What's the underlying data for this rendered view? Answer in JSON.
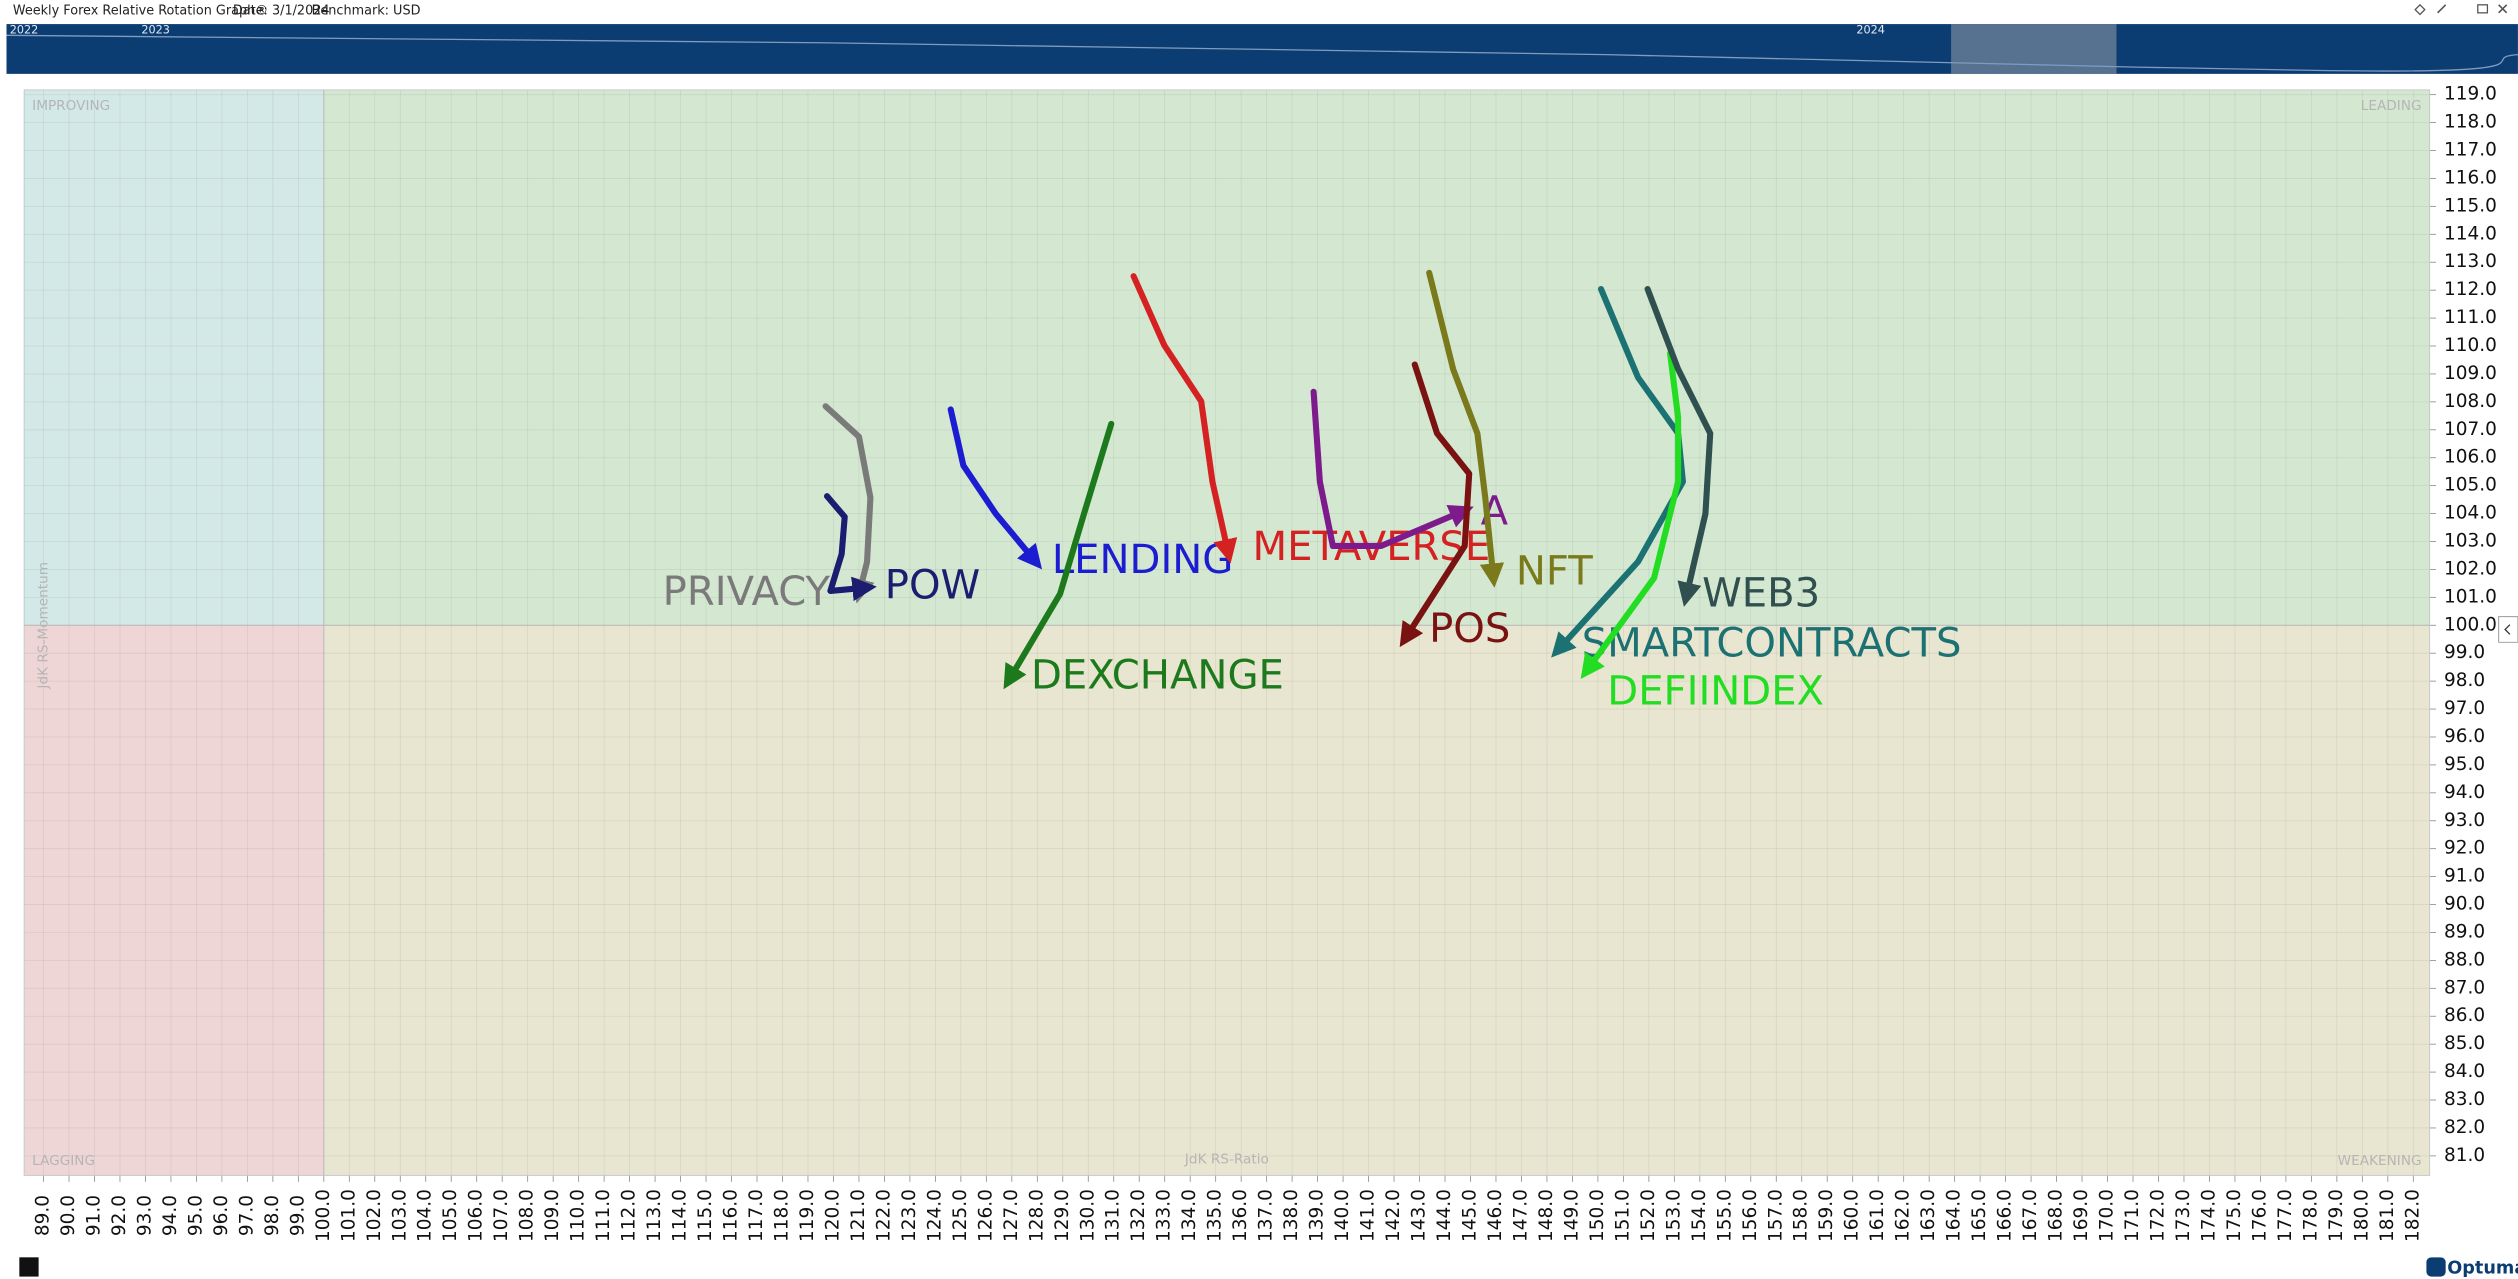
{
  "header": {
    "title": "Weekly Forex Relative Rotation Graph®",
    "date": "Date: 3/1/2024",
    "benchmark": "Benchmark: USD"
  },
  "timeline": {
    "labels": [
      "2022",
      "2023",
      "2024"
    ]
  },
  "footer": {
    "logo": "Optuma"
  },
  "chart_data": {
    "type": "rrg",
    "x_label": "JdK RS-Ratio",
    "y_label": "JdK RS-Momentum",
    "quadrants": {
      "improving": "IMPROVING",
      "leading": "LEADING",
      "lagging": "LAGGING",
      "weakening": "WEAKENING"
    },
    "quadrant_colors": {
      "improving": "#d3e9e7",
      "leading": "#d4e8d1",
      "lagging": "#efd6d6",
      "weakening": "#e8e6d0"
    },
    "center": [
      100,
      100
    ],
    "grid": true,
    "xlim": [
      88.24,
      182.64
    ],
    "ylim": [
      80.3,
      119.17
    ],
    "xticks": [
      {
        "value": 89,
        "label": "89.0"
      },
      {
        "value": 90,
        "label": "90.0"
      },
      {
        "value": 91,
        "label": "91.0"
      },
      {
        "value": 92,
        "label": "92.0"
      },
      {
        "value": 93,
        "label": "93.0"
      },
      {
        "value": 94,
        "label": "94.0"
      },
      {
        "value": 95,
        "label": "95.0"
      },
      {
        "value": 96,
        "label": "96.0"
      },
      {
        "value": 97,
        "label": "97.0"
      },
      {
        "value": 98,
        "label": "98.0"
      },
      {
        "value": 99,
        "label": "99.0"
      },
      {
        "value": 100,
        "label": "100.0"
      },
      {
        "value": 101,
        "label": "101.0"
      },
      {
        "value": 102,
        "label": "102.0"
      },
      {
        "value": 103,
        "label": "103.0"
      },
      {
        "value": 104,
        "label": "104.0"
      },
      {
        "value": 105,
        "label": "105.0"
      },
      {
        "value": 106,
        "label": "106.0"
      },
      {
        "value": 107,
        "label": "107.0"
      },
      {
        "value": 108,
        "label": "108.0"
      },
      {
        "value": 109,
        "label": "109.0"
      },
      {
        "value": 110,
        "label": "110.0"
      },
      {
        "value": 111,
        "label": "111.0"
      },
      {
        "value": 112,
        "label": "112.0"
      },
      {
        "value": 113,
        "label": "113.0"
      },
      {
        "value": 114,
        "label": "114.0"
      },
      {
        "value": 115,
        "label": "115.0"
      },
      {
        "value": 116,
        "label": "116.0"
      },
      {
        "value": 117,
        "label": "117.0"
      },
      {
        "value": 118,
        "label": "118.0"
      },
      {
        "value": 119,
        "label": "119.0"
      },
      {
        "value": 120,
        "label": "120.0"
      },
      {
        "value": 121,
        "label": "121.0"
      },
      {
        "value": 122,
        "label": "122.0"
      },
      {
        "value": 123,
        "label": "123.0"
      },
      {
        "value": 124,
        "label": "124.0"
      },
      {
        "value": 125,
        "label": "125.0"
      },
      {
        "value": 126,
        "label": "126.0"
      },
      {
        "value": 127,
        "label": "127.0"
      },
      {
        "value": 128,
        "label": "128.0"
      },
      {
        "value": 129,
        "label": "129.0"
      },
      {
        "value": 130,
        "label": "130.0"
      },
      {
        "value": 131,
        "label": "131.0"
      },
      {
        "value": 132,
        "label": "132.0"
      },
      {
        "value": 133,
        "label": "133.0"
      },
      {
        "value": 134,
        "label": "134.0"
      },
      {
        "value": 135,
        "label": "135.0"
      },
      {
        "value": 136,
        "label": "136.0"
      },
      {
        "value": 137,
        "label": "137.0"
      },
      {
        "value": 138,
        "label": "138.0"
      },
      {
        "value": 139,
        "label": "139.0"
      },
      {
        "value": 140,
        "label": "140.0"
      },
      {
        "value": 141,
        "label": "141.0"
      },
      {
        "value": 142,
        "label": "142.0"
      },
      {
        "value": 143,
        "label": "143.0"
      },
      {
        "value": 144,
        "label": "144.0"
      },
      {
        "value": 145,
        "label": "145.0"
      },
      {
        "value": 146,
        "label": "146.0"
      },
      {
        "value": 147,
        "label": "147.0"
      },
      {
        "value": 148,
        "label": "148.0"
      },
      {
        "value": 149,
        "label": "149.0"
      },
      {
        "value": 150,
        "label": "150.0"
      },
      {
        "value": 151,
        "label": "151.0"
      },
      {
        "value": 152,
        "label": "152.0"
      },
      {
        "value": 153,
        "label": "153.0"
      },
      {
        "value": 154,
        "label": "154.0"
      },
      {
        "value": 155,
        "label": "155.0"
      },
      {
        "value": 156,
        "label": "156.0"
      },
      {
        "value": 157,
        "label": "157.0"
      },
      {
        "value": 158,
        "label": "158.0"
      },
      {
        "value": 159,
        "label": "159.0"
      },
      {
        "value": 160,
        "label": "160.0"
      },
      {
        "value": 161,
        "label": "161.0"
      },
      {
        "value": 162,
        "label": "162.0"
      },
      {
        "value": 163,
        "label": "163.0"
      },
      {
        "value": 164,
        "label": "164.0"
      },
      {
        "value": 165,
        "label": "165.0"
      },
      {
        "value": 166,
        "label": "166.0"
      },
      {
        "value": 167,
        "label": "167.0"
      },
      {
        "value": 168,
        "label": "168.0"
      },
      {
        "value": 169,
        "label": "169.0"
      },
      {
        "value": 170,
        "label": "170.0"
      },
      {
        "value": 171,
        "label": "171.0"
      },
      {
        "value": 172,
        "label": "172.0"
      },
      {
        "value": 173,
        "label": "173.0"
      },
      {
        "value": 174,
        "label": "174.0"
      },
      {
        "value": 175,
        "label": "175.0"
      },
      {
        "value": 176,
        "label": "176.0"
      },
      {
        "value": 177,
        "label": "177.0"
      },
      {
        "value": 178,
        "label": "178.0"
      },
      {
        "value": 179,
        "label": "179.0"
      },
      {
        "value": 180,
        "label": "180.0"
      },
      {
        "value": 181,
        "label": "181.0"
      },
      {
        "value": 182,
        "label": "182.0"
      }
    ],
    "yticks": [
      {
        "value": 81,
        "label": "81.0"
      },
      {
        "value": 82,
        "label": "82.0"
      },
      {
        "value": 83,
        "label": "83.0"
      },
      {
        "value": 84,
        "label": "84.0"
      },
      {
        "value": 85,
        "label": "85.0"
      },
      {
        "value": 86,
        "label": "86.0"
      },
      {
        "value": 87,
        "label": "87.0"
      },
      {
        "value": 88,
        "label": "88.0"
      },
      {
        "value": 89,
        "label": "89.0"
      },
      {
        "value": 90,
        "label": "90.0"
      },
      {
        "value": 91,
        "label": "91.0"
      },
      {
        "value": 92,
        "label": "92.0"
      },
      {
        "value": 93,
        "label": "93.0"
      },
      {
        "value": 94,
        "label": "94.0"
      },
      {
        "value": 95,
        "label": "95.0"
      },
      {
        "value": 96,
        "label": "96.0"
      },
      {
        "value": 97,
        "label": "97.0"
      },
      {
        "value": 98,
        "label": "98.0"
      },
      {
        "value": 99,
        "label": "99.0"
      },
      {
        "value": 100,
        "label": "100.0"
      },
      {
        "value": 101,
        "label": "101.0"
      },
      {
        "value": 102,
        "label": "102.0"
      },
      {
        "value": 103,
        "label": "103.0"
      },
      {
        "value": 104,
        "label": "104.0"
      },
      {
        "value": 105,
        "label": "105.0"
      },
      {
        "value": 106,
        "label": "106.0"
      },
      {
        "value": 107,
        "label": "107.0"
      },
      {
        "value": 108,
        "label": "108.0"
      },
      {
        "value": 109,
        "label": "109.0"
      },
      {
        "value": 110,
        "label": "110.0"
      },
      {
        "value": 111,
        "label": "111.0"
      },
      {
        "value": 112,
        "label": "112.0"
      },
      {
        "value": 113,
        "label": "113.0"
      },
      {
        "value": 114,
        "label": "114.0"
      },
      {
        "value": 115,
        "label": "115.0"
      },
      {
        "value": 116,
        "label": "116.0"
      },
      {
        "value": 117,
        "label": "117.0"
      },
      {
        "value": 118,
        "label": "118.0"
      },
      {
        "value": 119,
        "label": "119.0"
      }
    ],
    "series": [
      {
        "name": "PRIVACY",
        "color": "#7a7a7a",
        "x": [
          119.69,
          121.0,
          121.45,
          121.32,
          121.0
        ],
        "y": [
          107.84,
          106.75,
          104.57,
          102.27,
          101.12
        ]
      },
      {
        "name": "POW",
        "color": "#1c1c70",
        "x": [
          119.75,
          120.44,
          120.32,
          119.88,
          121.32
        ],
        "y": [
          104.62,
          103.88,
          102.55,
          101.23,
          101.35
        ]
      },
      {
        "name": "LENDING",
        "color": "#1c1cd0",
        "x": [
          124.6,
          125.1,
          126.37,
          127.94
        ],
        "y": [
          107.73,
          105.72,
          103.99,
          102.27
        ]
      },
      {
        "name": "DEXCHANGE",
        "color": "#1c7a1c",
        "x": [
          130.9,
          129.83,
          128.89,
          126.87
        ],
        "y": [
          107.21,
          103.99,
          101.12,
          98.01
        ]
      },
      {
        "name": "METAVERSE",
        "color": "#d42222",
        "x": [
          131.78,
          132.98,
          134.43,
          134.87,
          135.5
        ],
        "y": [
          112.5,
          110.03,
          108.02,
          105.14,
          102.55
        ]
      },
      {
        "name": "A",
        "color": "#7d1b8c",
        "x": [
          138.84,
          139.09,
          139.6,
          141.49,
          144.77
        ],
        "y": [
          108.36,
          105.14,
          102.84,
          102.84,
          104.11
        ]
      },
      {
        "name": "NFT",
        "color": "#7a7a1c",
        "x": [
          143.38,
          144.32,
          145.27,
          145.58,
          145.9
        ],
        "y": [
          112.62,
          109.17,
          106.87,
          104.57,
          101.69
        ]
      },
      {
        "name": "POS",
        "color": "#7a1212",
        "x": [
          142.81,
          143.69,
          144.95,
          144.77,
          142.43
        ],
        "y": [
          109.34,
          106.87,
          105.43,
          102.84,
          99.51
        ]
      },
      {
        "name": "SMARTCONTRACTS",
        "color": "#1c7272",
        "x": [
          150.12,
          151.57,
          153.15,
          153.34,
          151.57,
          148.42
        ],
        "y": [
          112.04,
          108.88,
          106.87,
          105.14,
          102.27,
          99.1
        ]
      },
      {
        "name": "DEFIINDEX",
        "color": "#22dd22",
        "x": [
          152.83,
          153.15,
          153.15,
          152.2,
          149.55
        ],
        "y": [
          109.74,
          107.44,
          105.14,
          101.69,
          98.36
        ]
      },
      {
        "name": "WEB3",
        "color": "#304f4f",
        "x": [
          151.95,
          153.15,
          154.41,
          154.22,
          153.46
        ],
        "y": [
          112.04,
          109.17,
          106.87,
          103.99,
          101.0
        ]
      }
    ]
  }
}
